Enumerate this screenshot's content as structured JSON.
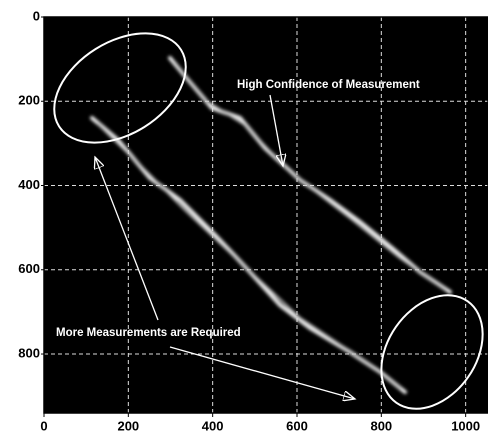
{
  "chart_data": {
    "type": "image",
    "xlim": [
      0,
      1053
    ],
    "ylim": [
      940,
      0
    ],
    "xticks": [
      0,
      200,
      400,
      600,
      800,
      1000
    ],
    "yticks": [
      0,
      200,
      400,
      600,
      800
    ],
    "grid": true,
    "annotations": [
      "High Confidence of Measurement",
      "More Measurements are Required"
    ]
  }
}
